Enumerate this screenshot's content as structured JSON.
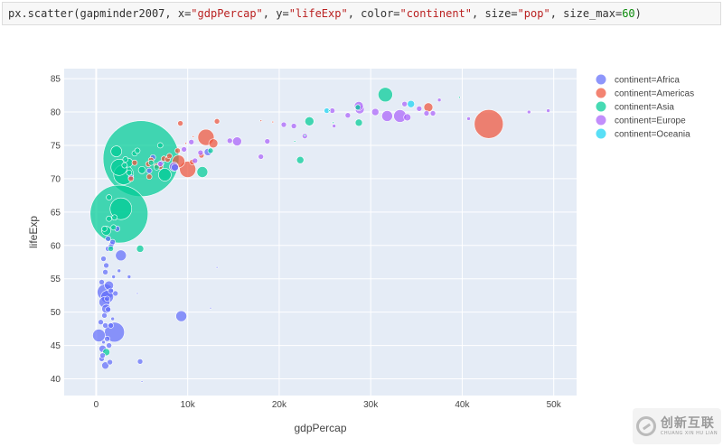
{
  "code": {
    "prefix": "px.scatter(gapminder2007, x=",
    "x_arg": "\"gdpPercap\"",
    "y_kw": ", y=",
    "y_arg": "\"lifeExp\"",
    "color_kw": ", color=",
    "color_arg": "\"continent\"",
    "size_kw": ", size=",
    "size_arg": "\"pop\"",
    "sizemax_kw": ", size_max=",
    "sizemax_arg": "60",
    "suffix": ")"
  },
  "watermark": {
    "main": "创新互联",
    "sub": "CHUANG XIN HU LIAN"
  },
  "chart_data": {
    "type": "scatter",
    "title": "",
    "xlabel": "gdpPercap",
    "ylabel": "lifeExp",
    "xlim": [
      -3500,
      52500
    ],
    "ylim": [
      37.5,
      86.5
    ],
    "xticks": [
      0,
      10000,
      20000,
      30000,
      40000,
      50000
    ],
    "xtick_labels": [
      "0",
      "10k",
      "20k",
      "30k",
      "40k",
      "50k"
    ],
    "yticks": [
      40,
      45,
      50,
      55,
      60,
      65,
      70,
      75,
      80,
      85
    ],
    "ytick_labels": [
      "40",
      "45",
      "50",
      "55",
      "60",
      "65",
      "70",
      "75",
      "80",
      "85"
    ],
    "grid": true,
    "legend_position": "right",
    "plot_bg": "#e5ecf6",
    "series": [
      {
        "name": "continent=Africa",
        "color": "#636efa",
        "points": [
          [
            1000,
            53
          ],
          [
            1200,
            52.3
          ],
          [
            1400,
            54
          ],
          [
            900,
            51.5
          ],
          [
            1100,
            50.5
          ],
          [
            2000,
            47
          ],
          [
            300,
            46.5
          ],
          [
            700,
            44.5
          ],
          [
            1000,
            42
          ],
          [
            1500,
            42.5
          ],
          [
            4800,
            42.6
          ],
          [
            9300,
            49.4
          ],
          [
            2700,
            58.5
          ],
          [
            1700,
            60.2
          ],
          [
            1300,
            59.5
          ],
          [
            800,
            58
          ],
          [
            1100,
            57
          ],
          [
            1900,
            55.3
          ],
          [
            3600,
            55.3
          ],
          [
            600,
            54.5
          ],
          [
            1000,
            56
          ],
          [
            1600,
            48
          ],
          [
            1200,
            46
          ],
          [
            800,
            45.5
          ],
          [
            600,
            43
          ],
          [
            1800,
            49
          ],
          [
            1300,
            50.4
          ],
          [
            500,
            48.5
          ],
          [
            900,
            49.5
          ],
          [
            2100,
            52.8
          ],
          [
            1300,
            61
          ],
          [
            2500,
            56.2
          ],
          [
            4500,
            52.8
          ],
          [
            1400,
            45
          ],
          [
            12500,
            50.6
          ],
          [
            13200,
            56.7
          ],
          [
            5000,
            39.6
          ],
          [
            700,
            43.5
          ],
          [
            1200,
            52
          ],
          [
            1600,
            53.2
          ],
          [
            1000,
            48
          ],
          [
            7100,
            72.3
          ],
          [
            8600,
            71.7
          ],
          [
            12200,
            74
          ],
          [
            5800,
            71.2
          ],
          [
            3800,
            70.2
          ],
          [
            6200,
            73.2
          ],
          [
            2300,
            62.5
          ],
          [
            1800,
            60.5
          ],
          [
            1600,
            59.8
          ]
        ],
        "sizes": [
          9,
          7,
          5,
          6,
          5,
          11,
          7,
          4,
          4,
          3,
          3,
          6,
          6,
          3,
          3,
          3,
          3,
          2,
          2,
          3,
          3,
          3,
          3,
          2,
          3,
          2,
          3,
          3,
          3,
          3,
          3,
          2,
          1,
          3,
          1,
          1,
          1,
          3,
          3,
          3,
          3,
          3,
          4,
          4,
          3,
          3,
          3,
          3,
          3,
          3
        ]
      },
      {
        "name": "continent=Americas",
        "color": "#ef553b",
        "points": [
          [
            42900,
            78.2
          ],
          [
            36300,
            80.7
          ],
          [
            12000,
            76.2
          ],
          [
            9000,
            72.6
          ],
          [
            10000,
            71.4
          ],
          [
            12800,
            75.3
          ],
          [
            7400,
            73
          ],
          [
            9200,
            78.3
          ],
          [
            13200,
            78.6
          ],
          [
            11500,
            73.5
          ],
          [
            7000,
            71.8
          ],
          [
            8900,
            74.2
          ],
          [
            5800,
            70.3
          ],
          [
            10500,
            72.5
          ],
          [
            18000,
            78.7
          ],
          [
            19300,
            78.5
          ],
          [
            6000,
            72.8
          ],
          [
            4200,
            72.4
          ],
          [
            7800,
            72.9
          ],
          [
            10600,
            76.3
          ],
          [
            3800,
            70
          ],
          [
            9800,
            75.3
          ],
          [
            8000,
            73.4
          ],
          [
            6600,
            71.9
          ],
          [
            5700,
            72.2
          ]
        ],
        "sizes": [
          16,
          5,
          9,
          7,
          9,
          5,
          3,
          3,
          3,
          3,
          3,
          3,
          3,
          3,
          1,
          1,
          3,
          3,
          3,
          1,
          3,
          1,
          3,
          3,
          3
        ]
      },
      {
        "name": "continent=Asia",
        "color": "#00cc96",
        "points": [
          [
            4900,
            73
          ],
          [
            2500,
            64.7
          ],
          [
            3000,
            70.6
          ],
          [
            2500,
            71.7
          ],
          [
            2700,
            65.5
          ],
          [
            3500,
            72.4
          ],
          [
            2200,
            74.1
          ],
          [
            5000,
            71.3
          ],
          [
            7500,
            70.6
          ],
          [
            11600,
            71
          ],
          [
            12500,
            74.2
          ],
          [
            31600,
            82.6
          ],
          [
            23300,
            78.6
          ],
          [
            28700,
            78.4
          ],
          [
            22300,
            72.8
          ],
          [
            39700,
            82.2
          ],
          [
            28600,
            80.7
          ],
          [
            21700,
            75.6
          ],
          [
            25500,
            80.2
          ],
          [
            3600,
            70.9
          ],
          [
            1400,
            64
          ],
          [
            1100,
            62.2
          ],
          [
            1600,
            59.5
          ],
          [
            4800,
            59.5
          ],
          [
            1100,
            44
          ],
          [
            1400,
            67.2
          ],
          [
            1900,
            62.7
          ],
          [
            3200,
            72.9
          ],
          [
            4200,
            73.8
          ],
          [
            6000,
            72.4
          ],
          [
            4500,
            74.2
          ],
          [
            7000,
            75
          ],
          [
            3100,
            72
          ],
          [
            900,
            62.5
          ],
          [
            2000,
            64.2
          ],
          [
            25900,
            78.4
          ],
          [
            22800,
            76.5
          ],
          [
            6600,
            71.7
          ]
        ],
        "sizes": [
          42,
          32,
          11,
          9,
          12,
          5,
          6,
          4,
          7,
          6,
          3,
          8,
          5,
          4,
          4,
          1,
          3,
          1,
          1,
          3,
          3,
          5,
          3,
          4,
          4,
          3,
          3,
          3,
          3,
          3,
          3,
          3,
          3,
          3,
          3,
          1,
          1,
          3
        ]
      },
      {
        "name": "continent=Europe",
        "color": "#ab63fa",
        "points": [
          [
            33200,
            79.4
          ],
          [
            31800,
            79.4
          ],
          [
            30500,
            80
          ],
          [
            34000,
            79.2
          ],
          [
            28800,
            80.4
          ],
          [
            28700,
            80.9
          ],
          [
            36100,
            79.8
          ],
          [
            36800,
            79.8
          ],
          [
            33700,
            81.2
          ],
          [
            37500,
            81.8
          ],
          [
            40700,
            79
          ],
          [
            49400,
            80.2
          ],
          [
            26000,
            77.9
          ],
          [
            15400,
            75.6
          ],
          [
            8500,
            71.8
          ],
          [
            10800,
            72.7
          ],
          [
            14600,
            75.7
          ],
          [
            18000,
            73.3
          ],
          [
            20500,
            78.1
          ],
          [
            22800,
            76.4
          ],
          [
            27500,
            79.5
          ],
          [
            35300,
            80.5
          ],
          [
            47300,
            80
          ],
          [
            10400,
            75.5
          ],
          [
            9600,
            74.4
          ],
          [
            11400,
            73.9
          ],
          [
            18700,
            75.6
          ],
          [
            25800,
            80.2
          ],
          [
            21600,
            77.9
          ],
          [
            7000,
            72.2
          ]
        ],
        "sizes": [
          7,
          6,
          4,
          4,
          5,
          5,
          3,
          3,
          3,
          2,
          2,
          2,
          2,
          5,
          5,
          3,
          3,
          3,
          3,
          3,
          3,
          3,
          2,
          3,
          3,
          3,
          3,
          3,
          3,
          3
        ]
      },
      {
        "name": "continent=Oceania",
        "color": "#19d3f3",
        "points": [
          [
            34400,
            81.2
          ],
          [
            25200,
            80.2
          ]
        ],
        "sizes": [
          4,
          3
        ]
      }
    ]
  }
}
